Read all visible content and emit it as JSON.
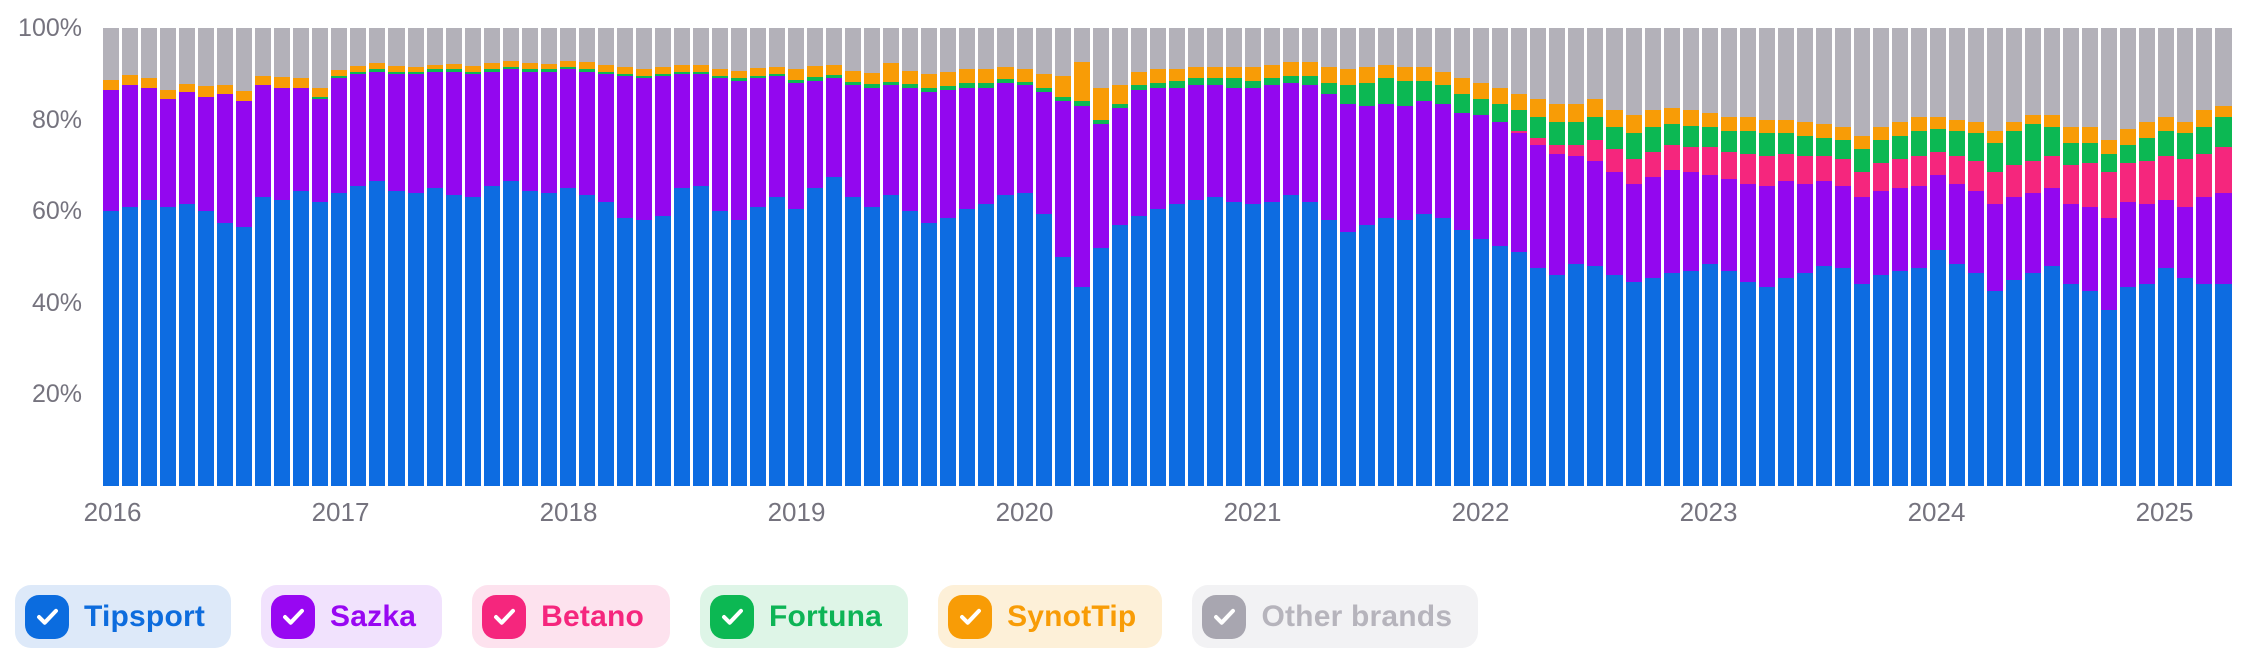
{
  "chart_data": {
    "type": "bar",
    "stacked": true,
    "unit": "%",
    "title": "",
    "xlabel": "",
    "ylabel": "",
    "ylim": [
      0,
      100
    ],
    "grid": false,
    "legend_position": "bottom",
    "x": [
      "2016-01",
      "2016-02",
      "2016-03",
      "2016-04",
      "2016-05",
      "2016-06",
      "2016-07",
      "2016-08",
      "2016-09",
      "2016-10",
      "2016-11",
      "2016-12",
      "2017-01",
      "2017-02",
      "2017-03",
      "2017-04",
      "2017-05",
      "2017-06",
      "2017-07",
      "2017-08",
      "2017-09",
      "2017-10",
      "2017-11",
      "2017-12",
      "2018-01",
      "2018-02",
      "2018-03",
      "2018-04",
      "2018-05",
      "2018-06",
      "2018-07",
      "2018-08",
      "2018-09",
      "2018-10",
      "2018-11",
      "2018-12",
      "2019-01",
      "2019-02",
      "2019-03",
      "2019-04",
      "2019-05",
      "2019-06",
      "2019-07",
      "2019-08",
      "2019-09",
      "2019-10",
      "2019-11",
      "2019-12",
      "2020-01",
      "2020-02",
      "2020-03",
      "2020-04",
      "2020-05",
      "2020-06",
      "2020-07",
      "2020-08",
      "2020-09",
      "2020-10",
      "2020-11",
      "2020-12",
      "2021-01",
      "2021-02",
      "2021-03",
      "2021-04",
      "2021-05",
      "2021-06",
      "2021-07",
      "2021-08",
      "2021-09",
      "2021-10",
      "2021-11",
      "2021-12",
      "2022-01",
      "2022-02",
      "2022-03",
      "2022-04",
      "2022-05",
      "2022-06",
      "2022-07",
      "2022-08",
      "2022-09",
      "2022-10",
      "2022-11",
      "2022-12",
      "2023-01",
      "2023-02",
      "2023-03",
      "2023-04",
      "2023-05",
      "2023-06",
      "2023-07",
      "2023-08",
      "2023-09",
      "2023-10",
      "2023-11",
      "2023-12",
      "2024-01",
      "2024-02",
      "2024-03",
      "2024-04",
      "2024-05",
      "2024-06",
      "2024-07",
      "2024-08",
      "2024-09",
      "2024-10",
      "2024-11",
      "2024-12",
      "2025-01",
      "2025-02",
      "2025-03",
      "2025-04"
    ],
    "x_ticks": [
      {
        "label": "2016",
        "month_index": 0
      },
      {
        "label": "2017",
        "month_index": 12
      },
      {
        "label": "2018",
        "month_index": 24
      },
      {
        "label": "2019",
        "month_index": 36
      },
      {
        "label": "2020",
        "month_index": 48
      },
      {
        "label": "2021",
        "month_index": 60
      },
      {
        "label": "2022",
        "month_index": 72
      },
      {
        "label": "2023",
        "month_index": 84
      },
      {
        "label": "2024",
        "month_index": 96
      },
      {
        "label": "2025",
        "month_index": 108
      }
    ],
    "y_ticks": [
      {
        "label": "100%",
        "value": 100
      },
      {
        "label": "80%",
        "value": 80
      },
      {
        "label": "60%",
        "value": 60
      },
      {
        "label": "40%",
        "value": 40
      },
      {
        "label": "20%",
        "value": 20
      }
    ],
    "series": [
      {
        "name": "Tipsport",
        "color": "#0d6ce1",
        "values": [
          60,
          61,
          62.5,
          61,
          61.5,
          60,
          57.5,
          56.5,
          63,
          62.5,
          64.5,
          62,
          64,
          65.5,
          66.5,
          64.5,
          64,
          65,
          63.5,
          63,
          65.5,
          66.5,
          64.5,
          64,
          65,
          63.5,
          62,
          58.5,
          58,
          59,
          65,
          65.5,
          60,
          58,
          61,
          63,
          60.5,
          65,
          67.5,
          63,
          61,
          63.5,
          60,
          57.5,
          58.5,
          60.5,
          61.5,
          63.5,
          64,
          59.5,
          50,
          43.5,
          52,
          57,
          59,
          60.5,
          61.5,
          62.5,
          63,
          62,
          61.5,
          62,
          63.5,
          62,
          58,
          55.5,
          57,
          58.5,
          58,
          59.5,
          58.5,
          56,
          54,
          52.5,
          51,
          47.5,
          46,
          48.5,
          48,
          46,
          44.5,
          45.5,
          46.5,
          47,
          48.5,
          47,
          44.5,
          43.5,
          45.5,
          46.5,
          48,
          47.5,
          44,
          46,
          47,
          47.5,
          51.5,
          48.5,
          46.5,
          42.5,
          45,
          46.5,
          48,
          44,
          42.5,
          38.5,
          43.5,
          44,
          47.5,
          45.5,
          44,
          44
        ]
      },
      {
        "name": "Sazka",
        "color": "#9307ef",
        "values": [
          26.5,
          26.5,
          24.5,
          23.5,
          24.5,
          25,
          28,
          27.5,
          24.5,
          24.5,
          22.5,
          22.5,
          25,
          24.5,
          24,
          25.5,
          26,
          25.5,
          27,
          27,
          25,
          24.5,
          26,
          26.5,
          26,
          27,
          28,
          31,
          31,
          30.5,
          25,
          24.5,
          29,
          30.5,
          28,
          26.5,
          27.5,
          23.5,
          21.5,
          24.5,
          26,
          24,
          27,
          28.5,
          28,
          26.5,
          25.5,
          24.5,
          23.5,
          26.5,
          34,
          39.5,
          27,
          25.5,
          27.5,
          26.5,
          25.5,
          25,
          24.5,
          25,
          25.5,
          25.5,
          24.5,
          25.5,
          27.5,
          28,
          26,
          25,
          25,
          24.5,
          25,
          25.5,
          27,
          27,
          26,
          27,
          26.5,
          23.5,
          23,
          22.5,
          21.5,
          22,
          22.5,
          21.5,
          19.5,
          20,
          21.5,
          22,
          21,
          19.5,
          18.5,
          18,
          19,
          18.5,
          18,
          18,
          16.5,
          17.5,
          18,
          19,
          18,
          17.5,
          17,
          17.5,
          18.5,
          20,
          18.5,
          17.5,
          15,
          15.5,
          19,
          20
        ]
      },
      {
        "name": "Betano",
        "color": "#f5267d",
        "values": [
          0,
          0,
          0,
          0,
          0,
          0,
          0,
          0,
          0,
          0,
          0,
          0,
          0,
          0,
          0,
          0,
          0,
          0,
          0,
          0,
          0,
          0,
          0,
          0,
          0,
          0,
          0,
          0,
          0,
          0,
          0,
          0,
          0,
          0,
          0,
          0,
          0,
          0,
          0,
          0,
          0,
          0,
          0,
          0,
          0,
          0,
          0,
          0,
          0,
          0,
          0,
          0,
          0,
          0,
          0,
          0,
          0,
          0,
          0,
          0,
          0,
          0,
          0,
          0,
          0,
          0,
          0,
          0,
          0,
          0,
          0,
          0,
          0,
          0,
          0.5,
          1.5,
          2,
          2.5,
          4.5,
          5,
          5.5,
          5.5,
          5.5,
          5.5,
          6,
          6,
          6.5,
          6.5,
          6,
          6,
          5.5,
          6,
          5.5,
          6,
          6.5,
          6.5,
          5,
          6,
          6.5,
          7,
          7,
          7,
          7,
          8.5,
          9.5,
          10,
          8.5,
          9.5,
          9.5,
          10.5,
          9.5,
          10
        ]
      },
      {
        "name": "Fortuna",
        "color": "#0cb853",
        "values": [
          0,
          0,
          0,
          0,
          0,
          0,
          0,
          0,
          0,
          0,
          0,
          0.4,
          0.5,
          0.5,
          0.5,
          0.5,
          0.4,
          0.5,
          0.5,
          0.5,
          0.5,
          0.6,
          0.5,
          0.5,
          0.5,
          0.5,
          0.5,
          0.5,
          0.5,
          0.5,
          0.5,
          0.5,
          0.5,
          0.5,
          0.5,
          0.5,
          0.7,
          0.7,
          0.7,
          0.7,
          0.7,
          0.8,
          0.7,
          0.8,
          0.8,
          1,
          1,
          0.8,
          0.8,
          1,
          1,
          1,
          1,
          1,
          1,
          1,
          1.5,
          1.5,
          1.5,
          2,
          1.5,
          1.5,
          1.5,
          2,
          2.5,
          4,
          5,
          5.5,
          5.5,
          4.5,
          4,
          4,
          3.5,
          4,
          4.5,
          4.5,
          5,
          5,
          5,
          5,
          5.5,
          5.5,
          4.5,
          4.5,
          4.5,
          4.5,
          5,
          5,
          4.5,
          4.5,
          4,
          4,
          5,
          5,
          5,
          5.5,
          5,
          5.5,
          6,
          6.5,
          7.5,
          8,
          6.5,
          5,
          4.5,
          4,
          4,
          5,
          5.5,
          5.5,
          6,
          6.5
        ]
      },
      {
        "name": "SynotTip",
        "color": "#f89c06",
        "values": [
          2.2,
          2.2,
          2,
          2,
          1.8,
          2.3,
          2,
          2.3,
          2,
          2.3,
          2,
          2.1,
          1.3,
          1.2,
          1.3,
          1.2,
          1.1,
          1,
          1.2,
          1.2,
          1.3,
          1.2,
          1.3,
          1.2,
          1.4,
          1.5,
          1.5,
          1.5,
          1.5,
          1.5,
          1.5,
          1.5,
          1.5,
          1.7,
          1.7,
          1.5,
          2.3,
          2.5,
          2.3,
          2.5,
          2.5,
          4,
          3,
          3.2,
          3.2,
          3,
          3,
          2.7,
          2.7,
          3,
          4.5,
          8.5,
          7,
          4,
          3,
          3,
          2.5,
          2.5,
          2.5,
          2.5,
          3,
          3,
          3,
          3,
          3.5,
          3.5,
          3.5,
          3,
          3,
          3,
          3,
          3.5,
          3.5,
          3.5,
          3.5,
          4,
          4,
          4,
          4,
          3.5,
          4,
          3.5,
          3.5,
          3.5,
          3,
          3,
          3,
          3,
          3,
          3,
          3,
          3,
          3,
          3,
          3,
          3,
          2.5,
          2.5,
          2.5,
          2.5,
          2,
          2,
          2.5,
          3.5,
          3.5,
          3,
          3.5,
          3.5,
          3,
          2.5,
          3.5,
          2.5
        ]
      },
      {
        "name": "Other brands",
        "color": "#b3b1b9",
        "values": [
          11.3,
          10.3,
          11,
          13.5,
          12.2,
          12.7,
          12.5,
          13.7,
          10.5,
          10.7,
          11,
          13,
          9.2,
          8.3,
          7.7,
          8.3,
          8.5,
          8,
          7.8,
          8.3,
          7.7,
          7.2,
          7.7,
          7.8,
          7.1,
          7.5,
          8,
          8.5,
          9,
          8.5,
          8,
          8,
          9,
          9.3,
          8.8,
          8.5,
          9,
          8.3,
          8,
          9.3,
          9.8,
          7.7,
          9.3,
          10,
          9.5,
          9,
          9,
          8.5,
          9,
          10,
          10.5,
          7.5,
          13,
          12.5,
          9.5,
          9,
          9,
          8.5,
          8.5,
          8.5,
          8.5,
          8,
          7.5,
          7.5,
          8.5,
          9,
          8.5,
          8,
          8.5,
          8.5,
          9.5,
          11,
          12,
          13,
          14.5,
          15.5,
          16.5,
          16.5,
          15.5,
          18,
          19,
          18,
          17.5,
          18,
          18.5,
          19.5,
          19.5,
          20,
          20,
          20.5,
          21,
          21.5,
          23.5,
          21.5,
          20.5,
          19.5,
          19.5,
          20,
          20.5,
          22.5,
          20.5,
          19,
          19,
          21.5,
          21.5,
          24.5,
          22,
          20.5,
          19.5,
          20.5,
          18,
          17
        ]
      }
    ]
  },
  "legend": {
    "items": [
      {
        "id": "tipsport",
        "label": "Tipsport",
        "checked": true,
        "checkbox_color": "#0b6cdf",
        "text_color": "#0d6cdd",
        "bg": "#dde9f9"
      },
      {
        "id": "sazka",
        "label": "Sazka",
        "checked": true,
        "checkbox_color": "#9807f2",
        "text_color": "#9807f2",
        "bg": "#f1e2fd"
      },
      {
        "id": "betano",
        "label": "Betano",
        "checked": true,
        "checkbox_color": "#f5267d",
        "text_color": "#f5267d",
        "bg": "#fde2ee"
      },
      {
        "id": "fortuna",
        "label": "Fortuna",
        "checked": true,
        "checkbox_color": "#0cb853",
        "text_color": "#0db456",
        "bg": "#def5e7"
      },
      {
        "id": "synottip",
        "label": "SynotTip",
        "checked": true,
        "checkbox_color": "#f89c06",
        "text_color": "#f89c06",
        "bg": "#fdf0d8"
      },
      {
        "id": "other",
        "label": "Other brands",
        "checked": true,
        "checkbox_color": "#a8a6b0",
        "text_color": "#b6b4bc",
        "bg": "#f2f2f4"
      }
    ]
  }
}
